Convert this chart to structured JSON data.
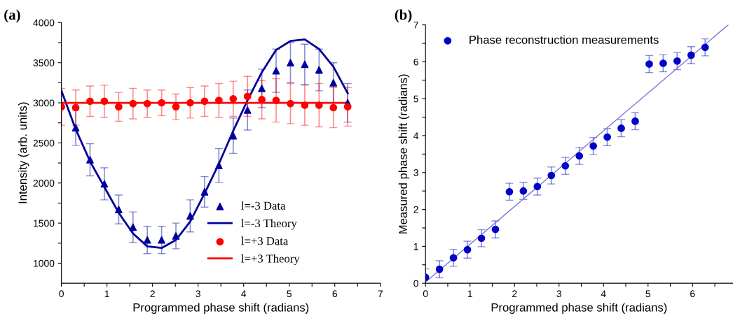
{
  "chart_data": [
    {
      "type": "scatter",
      "title": "(a)",
      "xlabel": "Programmed phase shift (radians)",
      "ylabel": "Intensity (arb. units)",
      "x": [
        0,
        0.314,
        0.628,
        0.942,
        1.257,
        1.571,
        1.885,
        2.199,
        2.513,
        2.827,
        3.142,
        3.456,
        3.77,
        4.084,
        4.398,
        4.712,
        5.027,
        5.341,
        5.655,
        5.969,
        6.283
      ],
      "xlim": [
        0,
        7
      ],
      "xticks": [
        0,
        {
          "value": 0.5,
          "label": null
        },
        1,
        {
          "value": 1.5,
          "label": null
        },
        2,
        {
          "value": 2.5,
          "label": null
        },
        3,
        {
          "value": 3.5,
          "label": null
        },
        4,
        {
          "value": 4.5,
          "label": null
        },
        5,
        {
          "value": 5.5,
          "label": null
        },
        6,
        {
          "value": 6.5,
          "label": null
        },
        7
      ],
      "ylim": [
        750,
        4000
      ],
      "yticks": [
        1000,
        {
          "value": 1250,
          "label": null
        },
        1500,
        {
          "value": 1750,
          "label": null
        },
        2000,
        {
          "value": 2250,
          "label": null
        },
        2500,
        {
          "value": 2750,
          "label": null
        },
        3000,
        {
          "value": 3250,
          "label": null
        },
        3500,
        {
          "value": 3750,
          "label": null
        },
        4000
      ],
      "legend": "bottom right",
      "grid": false,
      "series": [
        {
          "name": "l=-3 Data",
          "marker": "triangle",
          "color": "#00009c",
          "values": [
            null,
            2690,
            2290,
            1990,
            1670,
            1450,
            1290,
            1290,
            1340,
            1590,
            1890,
            2220,
            2590,
            2910,
            3180,
            3400,
            3500,
            3480,
            3410,
            3250,
            3000
          ],
          "errors": [
            null,
            220,
            200,
            200,
            180,
            190,
            170,
            170,
            160,
            200,
            190,
            210,
            220,
            250,
            240,
            270,
            250,
            250,
            260,
            250,
            240
          ]
        },
        {
          "name": "l=-3 Theory",
          "type": "line",
          "marker": "none",
          "color": "#00009c",
          "values": [
            3150,
            2670,
            2270,
            1950,
            1630,
            1370,
            1210,
            1190,
            1290,
            1520,
            1870,
            2240,
            2650,
            3030,
            3380,
            3660,
            3770,
            3790,
            3670,
            3450,
            3120
          ]
        },
        {
          "name": "l=+3 Data",
          "marker": "circle",
          "color": "#ff0000",
          "values": [
            2950,
            2940,
            3020,
            3020,
            2950,
            2990,
            2990,
            3000,
            2950,
            3000,
            3020,
            3030,
            3050,
            3080,
            3040,
            3030,
            2990,
            2970,
            2970,
            2940,
            2950
          ],
          "errors": [
            230,
            220,
            190,
            200,
            180,
            190,
            170,
            160,
            160,
            190,
            190,
            210,
            220,
            250,
            240,
            270,
            250,
            250,
            270,
            250,
            240
          ]
        },
        {
          "name": "l=+3 Theory",
          "type": "line",
          "marker": "none",
          "color": "#ff0000",
          "x": [
            0,
            6.283
          ],
          "values": [
            3000,
            3000
          ]
        }
      ]
    },
    {
      "type": "scatter",
      "title": "(b)",
      "xlabel": "Programmed phase shift (radians)",
      "ylabel": "Measured phase shift (radians)",
      "x": [
        0,
        0.314,
        0.628,
        0.942,
        1.257,
        1.571,
        1.885,
        2.199,
        2.513,
        2.827,
        3.142,
        3.456,
        3.77,
        4.084,
        4.398,
        4.712,
        5.027,
        5.341,
        5.655,
        5.969,
        6.283
      ],
      "xlim": [
        0,
        6.9
      ],
      "xticks": [
        0,
        {
          "value": 0.5,
          "label": null
        },
        1,
        {
          "value": 1.5,
          "label": null
        },
        2,
        {
          "value": 2.5,
          "label": null
        },
        3,
        {
          "value": 3.5,
          "label": null
        },
        4,
        {
          "value": 4.5,
          "label": null
        },
        5,
        {
          "value": 5.5,
          "label": null
        },
        6,
        {
          "value": 6.5,
          "label": null
        }
      ],
      "ylim": [
        0,
        7
      ],
      "yticks": [
        0,
        {
          "value": 0.5,
          "label": null
        },
        1,
        {
          "value": 1.5,
          "label": null
        },
        2,
        {
          "value": 2.5,
          "label": null
        },
        3,
        {
          "value": 3.5,
          "label": null
        },
        4,
        {
          "value": 4.5,
          "label": null
        },
        5,
        {
          "value": 5.5,
          "label": null
        },
        6,
        {
          "value": 6.5,
          "label": null
        },
        7
      ],
      "legend": "top left",
      "grid": false,
      "series": [
        {
          "name": "Phase reconstruction measurements",
          "marker": "circle",
          "color": "#0000c8",
          "values": [
            0.16,
            0.38,
            0.69,
            0.91,
            1.22,
            1.46,
            2.48,
            2.5,
            2.62,
            2.92,
            3.18,
            3.45,
            3.72,
            3.96,
            4.2,
            4.39,
            5.94,
            5.96,
            6.02,
            6.18,
            6.39
          ],
          "errors": [
            0.23,
            0.23,
            0.23,
            0.23,
            0.23,
            0.23,
            0.23,
            0.23,
            0.23,
            0.23,
            0.23,
            0.23,
            0.23,
            0.23,
            0.23,
            0.23,
            0.23,
            0.23,
            0.23,
            0.23,
            0.23
          ]
        },
        {
          "type": "line",
          "marker": "none",
          "color": "#7b7bd6",
          "x": [
            0,
            6.8
          ],
          "values": [
            0.03,
            7.0
          ]
        }
      ]
    }
  ]
}
